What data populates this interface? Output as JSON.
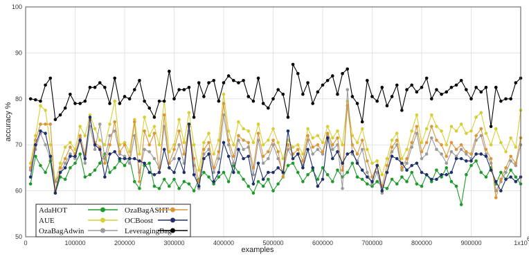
{
  "chart_data": {
    "type": "line",
    "xlabel": "examples",
    "ylabel": "accuracy %",
    "xlim": [
      0,
      1000000
    ],
    "ylim": [
      50,
      100
    ],
    "x_exponent_label": "x10",
    "x_exponent_power": "6",
    "xticks": [
      0,
      100000,
      200000,
      300000,
      400000,
      500000,
      600000,
      700000,
      800000,
      900000,
      1000000
    ],
    "xtick_labels": [
      "0",
      "100000",
      "200000",
      "300000",
      "400000",
      "500000",
      "600000",
      "700000",
      "800000",
      "900000",
      "1x10"
    ],
    "yticks": [
      50,
      60,
      70,
      80,
      90,
      100
    ],
    "grid": true,
    "legend_placement": "bottom-left",
    "x": [
      10000,
      20000,
      30000,
      40000,
      50000,
      60000,
      70000,
      80000,
      90000,
      100000,
      110000,
      120000,
      130000,
      140000,
      150000,
      160000,
      170000,
      180000,
      190000,
      200000,
      210000,
      220000,
      230000,
      240000,
      250000,
      260000,
      270000,
      280000,
      290000,
      300000,
      310000,
      320000,
      330000,
      340000,
      350000,
      360000,
      370000,
      380000,
      390000,
      400000,
      410000,
      420000,
      430000,
      440000,
      450000,
      460000,
      470000,
      480000,
      490000,
      500000,
      510000,
      520000,
      530000,
      540000,
      550000,
      560000,
      570000,
      580000,
      590000,
      600000,
      610000,
      620000,
      630000,
      640000,
      650000,
      660000,
      670000,
      680000,
      690000,
      700000,
      710000,
      720000,
      730000,
      740000,
      750000,
      760000,
      770000,
      780000,
      790000,
      800000,
      810000,
      820000,
      830000,
      840000,
      850000,
      860000,
      870000,
      880000,
      890000,
      900000,
      910000,
      920000,
      930000,
      940000,
      950000,
      960000,
      970000,
      980000,
      990000,
      1000000
    ],
    "series": [
      {
        "name": "AdaHOT",
        "color": "#1f9a2a",
        "values": [
          61.5,
          67.5,
          65.5,
          64.0,
          66.5,
          59.5,
          63.0,
          62.5,
          65.0,
          66.0,
          68.0,
          63.0,
          63.5,
          64.5,
          66.0,
          68.0,
          64.0,
          65.0,
          66.5,
          65.5,
          67.0,
          62.0,
          60.5,
          65.5,
          66.0,
          61.0,
          60.5,
          62.5,
          61.0,
          62.5,
          60.5,
          62.0,
          61.5,
          60.0,
          62.5,
          64.0,
          63.0,
          61.5,
          63.0,
          64.0,
          62.0,
          65.5,
          64.0,
          62.5,
          61.0,
          59.5,
          62.0,
          61.0,
          62.5,
          60.0,
          61.5,
          63.0,
          65.5,
          66.0,
          64.0,
          62.0,
          63.5,
          64.5,
          62.5,
          65.0,
          63.5,
          62.0,
          64.5,
          63.0,
          64.0,
          66.0,
          63.0,
          62.5,
          61.5,
          61.0,
          62.0,
          61.0,
          60.5,
          62.5,
          61.5,
          63.0,
          62.0,
          64.0,
          61.5,
          61.0,
          63.5,
          62.0,
          64.5,
          63.0,
          65.0,
          62.0,
          61.0,
          57.0,
          63.5,
          65.5,
          66.5,
          64.0,
          63.0,
          65.0,
          61.5,
          64.0,
          62.5,
          64.5,
          63.0,
          61.5
        ]
      },
      {
        "name": "AUE",
        "color": "#d6cf34",
        "values": [
          66.0,
          72.0,
          78.5,
          77.5,
          70.0,
          62.0,
          66.0,
          69.5,
          70.5,
          69.0,
          74.0,
          72.0,
          76.5,
          73.5,
          71.0,
          70.0,
          74.5,
          79.5,
          70.0,
          70.5,
          68.5,
          75.5,
          68.0,
          76.0,
          72.0,
          74.0,
          70.0,
          79.5,
          68.5,
          70.0,
          75.5,
          70.5,
          77.0,
          70.0,
          64.5,
          70.5,
          72.5,
          68.0,
          71.0,
          81.0,
          73.0,
          70.0,
          75.0,
          73.5,
          73.0,
          70.5,
          74.5,
          70.0,
          71.0,
          73.5,
          70.5,
          67.0,
          71.0,
          69.5,
          70.0,
          68.0,
          73.5,
          71.5,
          72.0,
          70.5,
          74.0,
          71.5,
          73.0,
          70.0,
          79.5,
          72.0,
          70.5,
          73.5,
          69.0,
          66.0,
          66.5,
          63.5,
          67.0,
          71.0,
          72.5,
          67.0,
          69.0,
          73.0,
          76.5,
          70.5,
          73.5,
          76.5,
          74.0,
          73.0,
          70.0,
          74.0,
          73.0,
          74.5,
          72.5,
          73.0,
          76.0,
          77.0,
          72.5,
          70.0,
          73.5,
          70.5,
          68.5,
          71.5,
          69.5,
          77.5
        ]
      },
      {
        "name": "OzaBagAdwin",
        "color": "#9a9a9a",
        "values": [
          64.5,
          69.0,
          72.5,
          70.0,
          67.0,
          62.0,
          64.0,
          66.0,
          68.0,
          67.0,
          71.5,
          66.0,
          74.0,
          69.0,
          74.5,
          67.0,
          72.0,
          73.0,
          68.0,
          67.5,
          66.0,
          72.0,
          64.0,
          69.0,
          68.5,
          67.0,
          65.0,
          74.0,
          66.0,
          67.0,
          70.0,
          66.0,
          73.0,
          65.5,
          60.5,
          68.0,
          69.0,
          64.0,
          67.0,
          76.5,
          70.0,
          66.0,
          71.0,
          69.0,
          69.5,
          63.5,
          71.0,
          66.0,
          67.0,
          70.0,
          67.0,
          64.0,
          69.0,
          67.0,
          68.0,
          65.5,
          71.0,
          68.0,
          69.0,
          68.0,
          72.0,
          69.0,
          70.0,
          60.5,
          82.0,
          68.0,
          66.5,
          69.0,
          64.0,
          61.5,
          64.0,
          59.5,
          64.0,
          68.5,
          70.0,
          64.5,
          66.0,
          69.5,
          72.5,
          67.0,
          68.0,
          71.5,
          69.0,
          68.0,
          66.0,
          68.5,
          67.5,
          69.0,
          68.0,
          67.0,
          71.0,
          72.0,
          68.0,
          66.0,
          60.0,
          62.0,
          64.0,
          66.5,
          65.5,
          70.0
        ]
      },
      {
        "name": "OzaBagASHT",
        "color": "#d9963a",
        "values": [
          65.0,
          71.0,
          74.5,
          74.5,
          74.5,
          60.0,
          65.0,
          67.0,
          69.5,
          68.0,
          72.0,
          68.0,
          75.5,
          70.5,
          69.5,
          66.0,
          70.0,
          75.0,
          68.5,
          70.0,
          67.0,
          75.0,
          62.0,
          73.0,
          70.0,
          72.5,
          64.0,
          76.5,
          66.0,
          69.0,
          73.0,
          68.0,
          74.0,
          67.0,
          62.0,
          69.0,
          70.5,
          65.0,
          68.5,
          79.0,
          71.0,
          67.5,
          72.0,
          71.0,
          70.5,
          65.0,
          72.5,
          67.5,
          68.5,
          71.0,
          68.5,
          63.0,
          70.0,
          68.0,
          69.0,
          66.5,
          72.0,
          69.5,
          70.0,
          68.5,
          72.5,
          70.0,
          71.5,
          64.5,
          78.5,
          70.0,
          68.0,
          71.0,
          66.5,
          63.0,
          65.5,
          61.0,
          65.5,
          69.5,
          71.0,
          65.0,
          67.0,
          70.5,
          74.0,
          68.5,
          70.5,
          74.0,
          71.0,
          70.0,
          67.5,
          70.5,
          69.0,
          70.0,
          68.5,
          68.0,
          72.0,
          73.5,
          69.0,
          67.0,
          58.5,
          62.5,
          65.0,
          67.5,
          66.0,
          71.5
        ]
      },
      {
        "name": "OCBoost",
        "color": "#1e2f6b",
        "values": [
          63.0,
          70.0,
          73.0,
          72.5,
          67.5,
          59.5,
          64.0,
          65.0,
          67.5,
          67.5,
          71.0,
          67.0,
          76.0,
          70.0,
          69.0,
          63.0,
          68.0,
          68.5,
          67.0,
          67.0,
          67.0,
          67.0,
          66.5,
          66.0,
          64.0,
          63.5,
          64.0,
          69.0,
          65.0,
          64.0,
          67.0,
          64.0,
          74.5,
          63.5,
          61.0,
          67.0,
          68.0,
          62.0,
          64.0,
          70.5,
          67.5,
          64.0,
          69.0,
          67.0,
          67.5,
          61.5,
          66.0,
          62.5,
          64.0,
          64.0,
          65.0,
          64.0,
          73.0,
          67.0,
          68.0,
          65.0,
          69.0,
          65.0,
          61.0,
          62.5,
          71.5,
          67.0,
          68.5,
          66.0,
          68.0,
          68.5,
          66.0,
          64.5,
          63.0,
          62.0,
          65.5,
          60.0,
          64.0,
          67.5,
          67.0,
          66.0,
          64.5,
          65.5,
          66.0,
          64.0,
          63.5,
          62.5,
          62.5,
          63.5,
          63.5,
          64.0,
          67.0,
          67.0,
          66.5,
          66.5,
          68.0,
          68.0,
          67.5,
          64.5,
          62.0,
          60.0,
          62.5,
          63.0,
          62.0,
          63.0
        ]
      },
      {
        "name": "LeveragingBag",
        "color": "#000000",
        "values": [
          80.0,
          79.8,
          79.5,
          83.0,
          84.5,
          75.5,
          76.5,
          78.0,
          81.0,
          79.0,
          79.0,
          79.5,
          82.5,
          82.5,
          83.5,
          82.5,
          79.0,
          84.5,
          79.0,
          80.5,
          80.0,
          82.0,
          84.0,
          79.5,
          78.0,
          76.0,
          79.5,
          79.5,
          86.0,
          80.0,
          82.0,
          82.0,
          82.5,
          76.0,
          83.5,
          80.5,
          83.5,
          84.0,
          79.5,
          83.5,
          85.0,
          84.0,
          83.5,
          84.0,
          80.5,
          79.5,
          84.5,
          79.0,
          78.0,
          80.0,
          82.0,
          81.0,
          76.0,
          87.5,
          85.5,
          81.0,
          83.5,
          79.0,
          81.5,
          83.0,
          84.0,
          85.0,
          81.0,
          85.5,
          86.5,
          80.5,
          79.0,
          75.0,
          84.0,
          80.5,
          79.5,
          82.5,
          78.5,
          80.5,
          83.0,
          77.5,
          82.0,
          83.0,
          81.5,
          82.5,
          84.5,
          80.0,
          82.0,
          81.0,
          81.5,
          82.5,
          83.0,
          84.0,
          82.0,
          80.0,
          82.5,
          81.5,
          82.5,
          74.0,
          82.5,
          79.5,
          80.0,
          80.0,
          83.5,
          84.5
        ]
      }
    ]
  }
}
